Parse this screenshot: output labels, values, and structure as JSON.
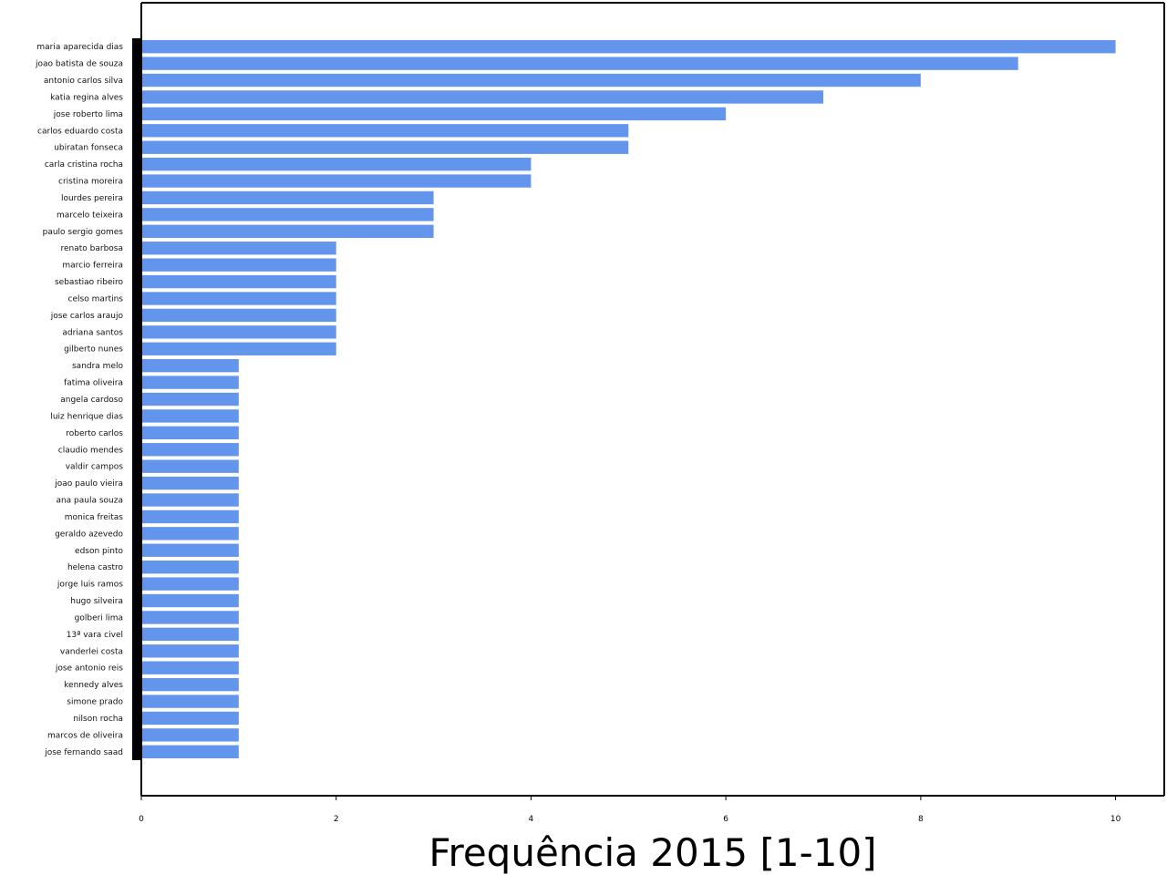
{
  "chart_data": {
    "type": "bar",
    "orientation": "horizontal",
    "title": "",
    "xlabel": "Frequência 2015 [1-10]",
    "ylabel": "",
    "xlim": [
      0,
      10.5
    ],
    "x_ticks": [
      "0",
      "2",
      "4",
      "6",
      "8",
      "10"
    ],
    "grid": false,
    "legend": "none",
    "bar_color": "#6495ED",
    "categories": [
      "maria aparecida dias",
      "joao batista de souza",
      "antonio carlos silva",
      "katia regina alves",
      "jose roberto lima",
      "carlos eduardo costa",
      "ubiratan fonseca",
      "carla cristina rocha",
      "cristina moreira",
      "lourdes pereira",
      "marcelo teixeira",
      "paulo sergio gomes",
      "renato barbosa",
      "marcio ferreira",
      "sebastiao ribeiro",
      "celso martins",
      "jose carlos araujo",
      "adriana santos",
      "gilberto nunes",
      "sandra melo",
      "fatima oliveira",
      "angela cardoso",
      "luiz henrique dias",
      "roberto carlos",
      "claudio mendes",
      "valdir campos",
      "joao paulo vieira",
      "ana paula souza",
      "monica freitas",
      "geraldo azevedo",
      "edson pinto",
      "helena castro",
      "jorge luis ramos",
      "hugo silveira",
      "golberi lima",
      "13ª vara civel",
      "vanderlei costa",
      "jose antonio reis",
      "kennedy alves",
      "simone prado",
      "nilson rocha",
      "marcos de oliveira",
      "jose fernando saad"
    ],
    "values": [
      10,
      9,
      8,
      7,
      6,
      5,
      5,
      4,
      4,
      3,
      3,
      3,
      2,
      2,
      2,
      2,
      2,
      2,
      2,
      1,
      1,
      1,
      1,
      1,
      1,
      1,
      1,
      1,
      1,
      1,
      1,
      1,
      1,
      1,
      1,
      1,
      1,
      1,
      1,
      1,
      1,
      1,
      1
    ]
  }
}
